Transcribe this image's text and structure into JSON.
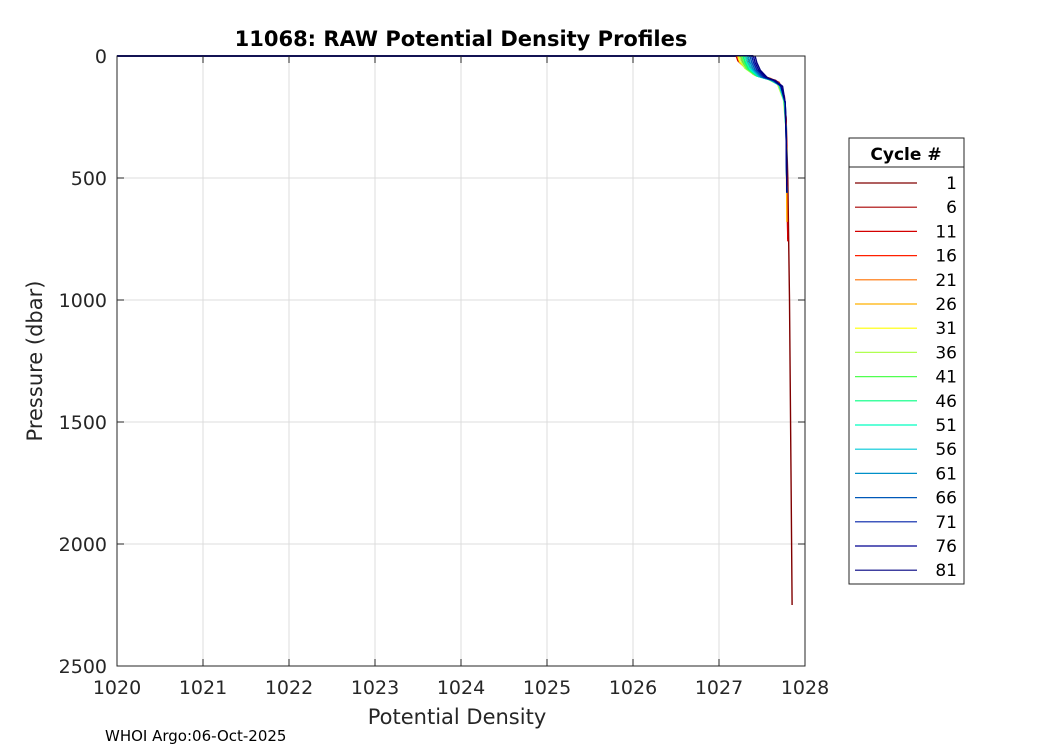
{
  "chart_data": {
    "type": "line",
    "title": "11068: RAW Potential Density Profiles",
    "xlabel": "Potential Density",
    "ylabel": "Pressure (dbar)",
    "xlim": [
      1020,
      1028
    ],
    "ylim": [
      0,
      2500
    ],
    "y_reversed": true,
    "grid": true,
    "x_ticks": [
      "1020",
      "1021",
      "1022",
      "1023",
      "1024",
      "1025",
      "1026",
      "1027",
      "1028"
    ],
    "y_ticks": [
      "0",
      "500",
      "1000",
      "1500",
      "2000",
      "2500"
    ],
    "legend": {
      "title": "Cycle #",
      "placement": "right-outside",
      "entries": [
        "1",
        "6",
        "11",
        "16",
        "21",
        "26",
        "31",
        "36",
        "41",
        "46",
        "51",
        "56",
        "61",
        "66",
        "71",
        "76",
        "81"
      ]
    },
    "series": [
      {
        "name": "1",
        "color": "#800000",
        "x": [
          1027.32,
          1027.34,
          1027.36,
          1027.4,
          1027.52,
          1027.66,
          1027.74,
          1027.78,
          1027.8,
          1027.82,
          1027.84,
          1027.85
        ],
        "y": [
          0,
          20,
          45,
          70,
          85,
          100,
          150,
          250,
          500,
          1000,
          1800,
          2250
        ]
      },
      {
        "name": "6",
        "color": "#a80000",
        "x": [
          1027.24,
          1027.26,
          1027.3,
          1027.4,
          1027.56,
          1027.68,
          1027.75,
          1027.78,
          1027.79,
          1027.8
        ],
        "y": [
          0,
          20,
          45,
          75,
          88,
          105,
          160,
          260,
          500,
          750
        ]
      },
      {
        "name": "11",
        "color": "#d40000",
        "x": [
          1027.2,
          1027.22,
          1027.28,
          1027.42,
          1027.58,
          1027.7,
          1027.76,
          1027.78,
          1027.79,
          1027.8
        ],
        "y": [
          0,
          20,
          40,
          72,
          90,
          108,
          165,
          270,
          500,
          760
        ]
      },
      {
        "name": "16",
        "color": "#ff2000",
        "x": [
          1027.3,
          1027.32,
          1027.36,
          1027.44,
          1027.58,
          1027.7,
          1027.76,
          1027.78,
          1027.79
        ],
        "y": [
          0,
          20,
          42,
          74,
          90,
          110,
          170,
          280,
          520
        ]
      },
      {
        "name": "21",
        "color": "#ff7000",
        "x": [
          1027.28,
          1027.3,
          1027.34,
          1027.44,
          1027.6,
          1027.7,
          1027.76,
          1027.78,
          1027.79
        ],
        "y": [
          0,
          22,
          45,
          76,
          92,
          112,
          175,
          290,
          540
        ]
      },
      {
        "name": "26",
        "color": "#ffb000",
        "x": [
          1027.26,
          1027.28,
          1027.32,
          1027.42,
          1027.58,
          1027.7,
          1027.76,
          1027.78,
          1027.79
        ],
        "y": [
          0,
          22,
          46,
          76,
          92,
          112,
          175,
          290,
          680
        ]
      },
      {
        "name": "31",
        "color": "#ffff00",
        "x": [
          1027.22,
          1027.24,
          1027.3,
          1027.42,
          1027.58,
          1027.7,
          1027.76,
          1027.78,
          1027.79
        ],
        "y": [
          0,
          24,
          48,
          78,
          94,
          114,
          180,
          300,
          560
        ]
      },
      {
        "name": "36",
        "color": "#b0ff50",
        "x": [
          1027.24,
          1027.26,
          1027.3,
          1027.42,
          1027.56,
          1027.68,
          1027.75,
          1027.78,
          1027.79
        ],
        "y": [
          0,
          24,
          50,
          80,
          94,
          116,
          180,
          300,
          560
        ]
      },
      {
        "name": "41",
        "color": "#50ff50",
        "x": [
          1027.26,
          1027.28,
          1027.32,
          1027.44,
          1027.58,
          1027.7,
          1027.76,
          1027.78,
          1027.79
        ],
        "y": [
          0,
          25,
          52,
          82,
          96,
          116,
          182,
          300,
          560
        ]
      },
      {
        "name": "46",
        "color": "#00ff80",
        "x": [
          1027.28,
          1027.3,
          1027.34,
          1027.44,
          1027.58,
          1027.7,
          1027.76,
          1027.78,
          1027.79
        ],
        "y": [
          0,
          25,
          52,
          82,
          96,
          118,
          185,
          305,
          560
        ]
      },
      {
        "name": "51",
        "color": "#00ffc0",
        "x": [
          1027.3,
          1027.32,
          1027.36,
          1027.46,
          1027.6,
          1027.7,
          1027.76,
          1027.78,
          1027.79
        ],
        "y": [
          0,
          26,
          54,
          84,
          98,
          118,
          185,
          305,
          560
        ]
      },
      {
        "name": "56",
        "color": "#00c8d8",
        "x": [
          1027.32,
          1027.34,
          1027.38,
          1027.46,
          1027.6,
          1027.7,
          1027.76,
          1027.78,
          1027.79
        ],
        "y": [
          0,
          26,
          54,
          84,
          98,
          120,
          188,
          310,
          560
        ]
      },
      {
        "name": "61",
        "color": "#0090c8",
        "x": [
          1027.34,
          1027.36,
          1027.4,
          1027.48,
          1027.62,
          1027.72,
          1027.77,
          1027.78,
          1027.79
        ],
        "y": [
          0,
          26,
          55,
          85,
          99,
          120,
          188,
          310,
          560
        ]
      },
      {
        "name": "66",
        "color": "#0058b8",
        "x": [
          1027.36,
          1027.38,
          1027.42,
          1027.5,
          1027.62,
          1027.72,
          1027.77,
          1027.78,
          1027.79
        ],
        "y": [
          0,
          26,
          56,
          86,
          100,
          122,
          190,
          315,
          560
        ]
      },
      {
        "name": "71",
        "color": "#0020a8",
        "x": [
          1027.38,
          1027.4,
          1027.44,
          1027.52,
          1027.64,
          1027.72,
          1027.77,
          1027.78,
          1027.79
        ],
        "y": [
          0,
          26,
          56,
          86,
          100,
          122,
          190,
          315,
          560
        ]
      },
      {
        "name": "76",
        "color": "#000090",
        "x": [
          1027.4,
          1027.42,
          1027.46,
          1027.54,
          1027.64,
          1027.72,
          1027.77,
          1027.78,
          1027.79
        ],
        "y": [
          0,
          27,
          57,
          87,
          100,
          124,
          192,
          320,
          560
        ]
      },
      {
        "name": "81",
        "color": "#000080",
        "x": [
          1027.42,
          1027.44,
          1027.48,
          1027.56,
          1027.66,
          1027.74,
          1027.77,
          1027.78,
          1027.79
        ],
        "y": [
          0,
          27,
          58,
          88,
          102,
          124,
          192,
          320,
          560
        ]
      }
    ]
  },
  "footer": "WHOI Argo:06-Oct-2025"
}
